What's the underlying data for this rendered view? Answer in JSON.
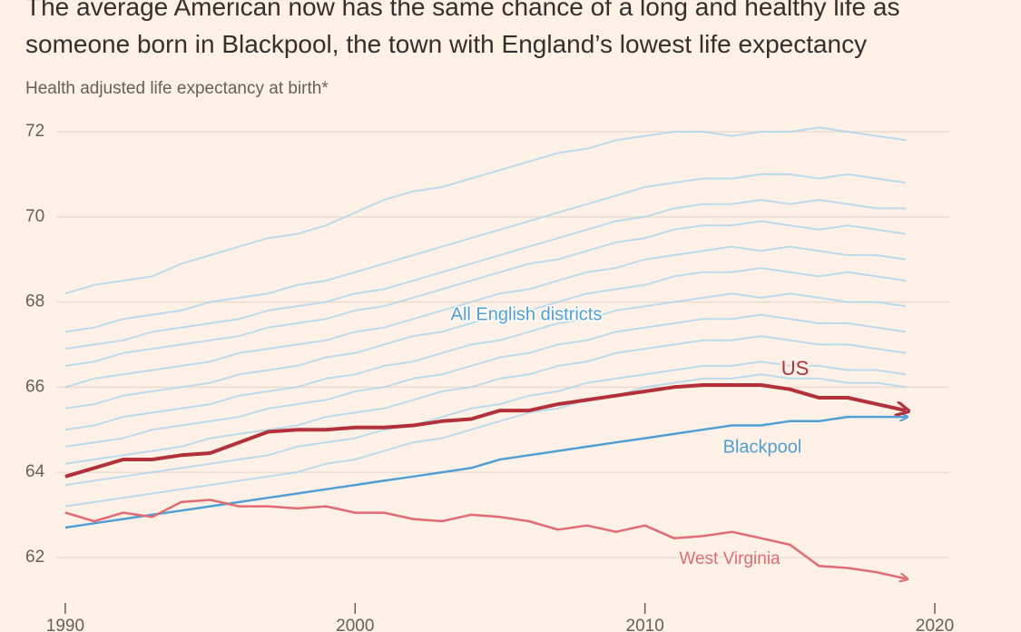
{
  "chart_data": {
    "type": "line",
    "title": "The average American now has the same chance of a long and healthy life as someone born in Blackpool, the town with England’s lowest life expectancy",
    "subtitle": "Health adjusted life expectancy at birth*",
    "annotations": [
      "All English districts"
    ],
    "x": [
      1990,
      1991,
      1992,
      1993,
      1994,
      1995,
      1996,
      1997,
      1998,
      1999,
      2000,
      2001,
      2002,
      2003,
      2004,
      2005,
      2006,
      2007,
      2008,
      2009,
      2010,
      2011,
      2012,
      2013,
      2014,
      2015,
      2016,
      2017,
      2018,
      2019
    ],
    "xlim": [
      1988.5,
      2020.5
    ],
    "xticks": [
      1990,
      2000,
      2010,
      2020
    ],
    "ylim": [
      61.1,
      72.3
    ],
    "yticks": [
      62,
      64,
      66,
      68,
      70,
      72
    ],
    "grid": true,
    "series": [
      {
        "color": "#a9d6ec",
        "values": [
          68.2,
          68.4,
          68.5,
          68.6,
          68.9,
          69.1,
          69.3,
          69.5,
          69.6,
          69.8,
          70.1,
          70.4,
          70.6,
          70.7,
          70.9,
          71.1,
          71.3,
          71.5,
          71.6,
          71.8,
          71.9,
          72.0,
          72.0,
          71.9,
          72.0,
          72.0,
          72.1,
          72.0,
          71.9,
          71.8
        ]
      },
      {
        "color": "#a9d6ec",
        "values": [
          67.3,
          67.4,
          67.6,
          67.7,
          67.8,
          68.0,
          68.1,
          68.2,
          68.4,
          68.5,
          68.7,
          68.9,
          69.1,
          69.3,
          69.5,
          69.7,
          69.9,
          70.1,
          70.3,
          70.5,
          70.7,
          70.8,
          70.9,
          70.9,
          71.0,
          71.0,
          70.9,
          71.0,
          70.9,
          70.8
        ]
      },
      {
        "color": "#a9d6ec",
        "values": [
          66.9,
          67.0,
          67.1,
          67.3,
          67.4,
          67.5,
          67.6,
          67.8,
          67.9,
          68.0,
          68.2,
          68.3,
          68.5,
          68.7,
          68.9,
          69.1,
          69.3,
          69.5,
          69.7,
          69.9,
          70.0,
          70.2,
          70.3,
          70.3,
          70.4,
          70.3,
          70.4,
          70.3,
          70.2,
          70.2
        ]
      },
      {
        "color": "#a9d6ec",
        "values": [
          66.5,
          66.6,
          66.8,
          66.9,
          67.0,
          67.1,
          67.2,
          67.4,
          67.5,
          67.6,
          67.8,
          67.9,
          68.1,
          68.3,
          68.5,
          68.7,
          68.9,
          69.0,
          69.2,
          69.4,
          69.5,
          69.7,
          69.8,
          69.8,
          69.9,
          69.8,
          69.7,
          69.8,
          69.7,
          69.6
        ]
      },
      {
        "color": "#a9d6ec",
        "values": [
          66.0,
          66.2,
          66.3,
          66.4,
          66.5,
          66.6,
          66.8,
          66.9,
          67.0,
          67.1,
          67.3,
          67.4,
          67.6,
          67.8,
          68.0,
          68.2,
          68.3,
          68.5,
          68.7,
          68.8,
          69.0,
          69.1,
          69.2,
          69.3,
          69.2,
          69.3,
          69.2,
          69.1,
          69.1,
          69.0
        ]
      },
      {
        "color": "#a9d6ec",
        "values": [
          65.5,
          65.6,
          65.8,
          65.9,
          66.0,
          66.1,
          66.3,
          66.4,
          66.5,
          66.7,
          66.8,
          67.0,
          67.2,
          67.3,
          67.5,
          67.7,
          67.8,
          68.0,
          68.2,
          68.3,
          68.4,
          68.6,
          68.7,
          68.7,
          68.8,
          68.7,
          68.6,
          68.7,
          68.6,
          68.5
        ]
      },
      {
        "color": "#a9d6ec",
        "values": [
          65.0,
          65.1,
          65.3,
          65.4,
          65.5,
          65.6,
          65.8,
          65.9,
          66.0,
          66.2,
          66.3,
          66.5,
          66.6,
          66.8,
          67.0,
          67.1,
          67.3,
          67.5,
          67.6,
          67.8,
          67.9,
          68.0,
          68.1,
          68.2,
          68.1,
          68.2,
          68.1,
          68.0,
          68.0,
          67.9
        ]
      },
      {
        "color": "#a9d6ec",
        "values": [
          64.6,
          64.7,
          64.8,
          65.0,
          65.1,
          65.2,
          65.3,
          65.5,
          65.6,
          65.7,
          65.9,
          66.0,
          66.2,
          66.3,
          66.5,
          66.7,
          66.8,
          67.0,
          67.1,
          67.3,
          67.4,
          67.5,
          67.6,
          67.6,
          67.7,
          67.6,
          67.5,
          67.5,
          67.4,
          67.3
        ]
      },
      {
        "color": "#a9d6ec",
        "values": [
          64.2,
          64.3,
          64.4,
          64.5,
          64.6,
          64.8,
          64.9,
          65.0,
          65.1,
          65.3,
          65.4,
          65.5,
          65.7,
          65.9,
          66.0,
          66.2,
          66.3,
          66.5,
          66.6,
          66.8,
          66.9,
          67.0,
          67.1,
          67.1,
          67.2,
          67.1,
          67.0,
          67.0,
          66.9,
          66.8
        ]
      },
      {
        "color": "#a9d6ec",
        "values": [
          63.7,
          63.8,
          63.9,
          64.0,
          64.1,
          64.2,
          64.3,
          64.4,
          64.6,
          64.7,
          64.8,
          65.0,
          65.1,
          65.3,
          65.5,
          65.6,
          65.8,
          65.9,
          66.1,
          66.2,
          66.3,
          66.4,
          66.5,
          66.5,
          66.6,
          66.5,
          66.5,
          66.4,
          66.4,
          66.3
        ]
      },
      {
        "color": "#a9d6ec",
        "values": [
          63.2,
          63.3,
          63.4,
          63.5,
          63.6,
          63.7,
          63.8,
          63.9,
          64.0,
          64.2,
          64.3,
          64.5,
          64.7,
          64.8,
          65.0,
          65.2,
          65.4,
          65.5,
          65.7,
          65.8,
          66.0,
          66.1,
          66.2,
          66.2,
          66.3,
          66.2,
          66.2,
          66.1,
          66.1,
          66.0
        ]
      },
      {
        "name": "Blackpool",
        "color": "#4e9fd6",
        "values": [
          62.7,
          62.8,
          62.9,
          63.0,
          63.1,
          63.2,
          63.3,
          63.4,
          63.5,
          63.6,
          63.7,
          63.8,
          63.9,
          64.0,
          64.1,
          64.3,
          64.4,
          64.5,
          64.6,
          64.7,
          64.8,
          64.9,
          65.0,
          65.1,
          65.1,
          65.2,
          65.2,
          65.3,
          65.3,
          65.3
        ]
      },
      {
        "name": "West Virginia",
        "color": "#e36a72",
        "values": [
          63.05,
          62.85,
          63.05,
          62.95,
          63.3,
          63.35,
          63.2,
          63.2,
          63.15,
          63.2,
          63.05,
          63.05,
          62.9,
          62.85,
          63.0,
          62.95,
          62.85,
          62.65,
          62.75,
          62.6,
          62.75,
          62.45,
          62.5,
          62.6,
          62.45,
          62.3,
          61.8,
          61.75,
          61.65,
          61.5
        ]
      },
      {
        "name": "US",
        "color": "#b3303b",
        "values": [
          63.9,
          64.1,
          64.3,
          64.3,
          64.4,
          64.45,
          64.7,
          64.95,
          65.0,
          65.0,
          65.05,
          65.05,
          65.1,
          65.2,
          65.25,
          65.45,
          65.45,
          65.6,
          65.7,
          65.8,
          65.9,
          66.0,
          66.05,
          66.05,
          66.05,
          65.95,
          65.75,
          65.75,
          65.6,
          65.45
        ]
      }
    ]
  }
}
